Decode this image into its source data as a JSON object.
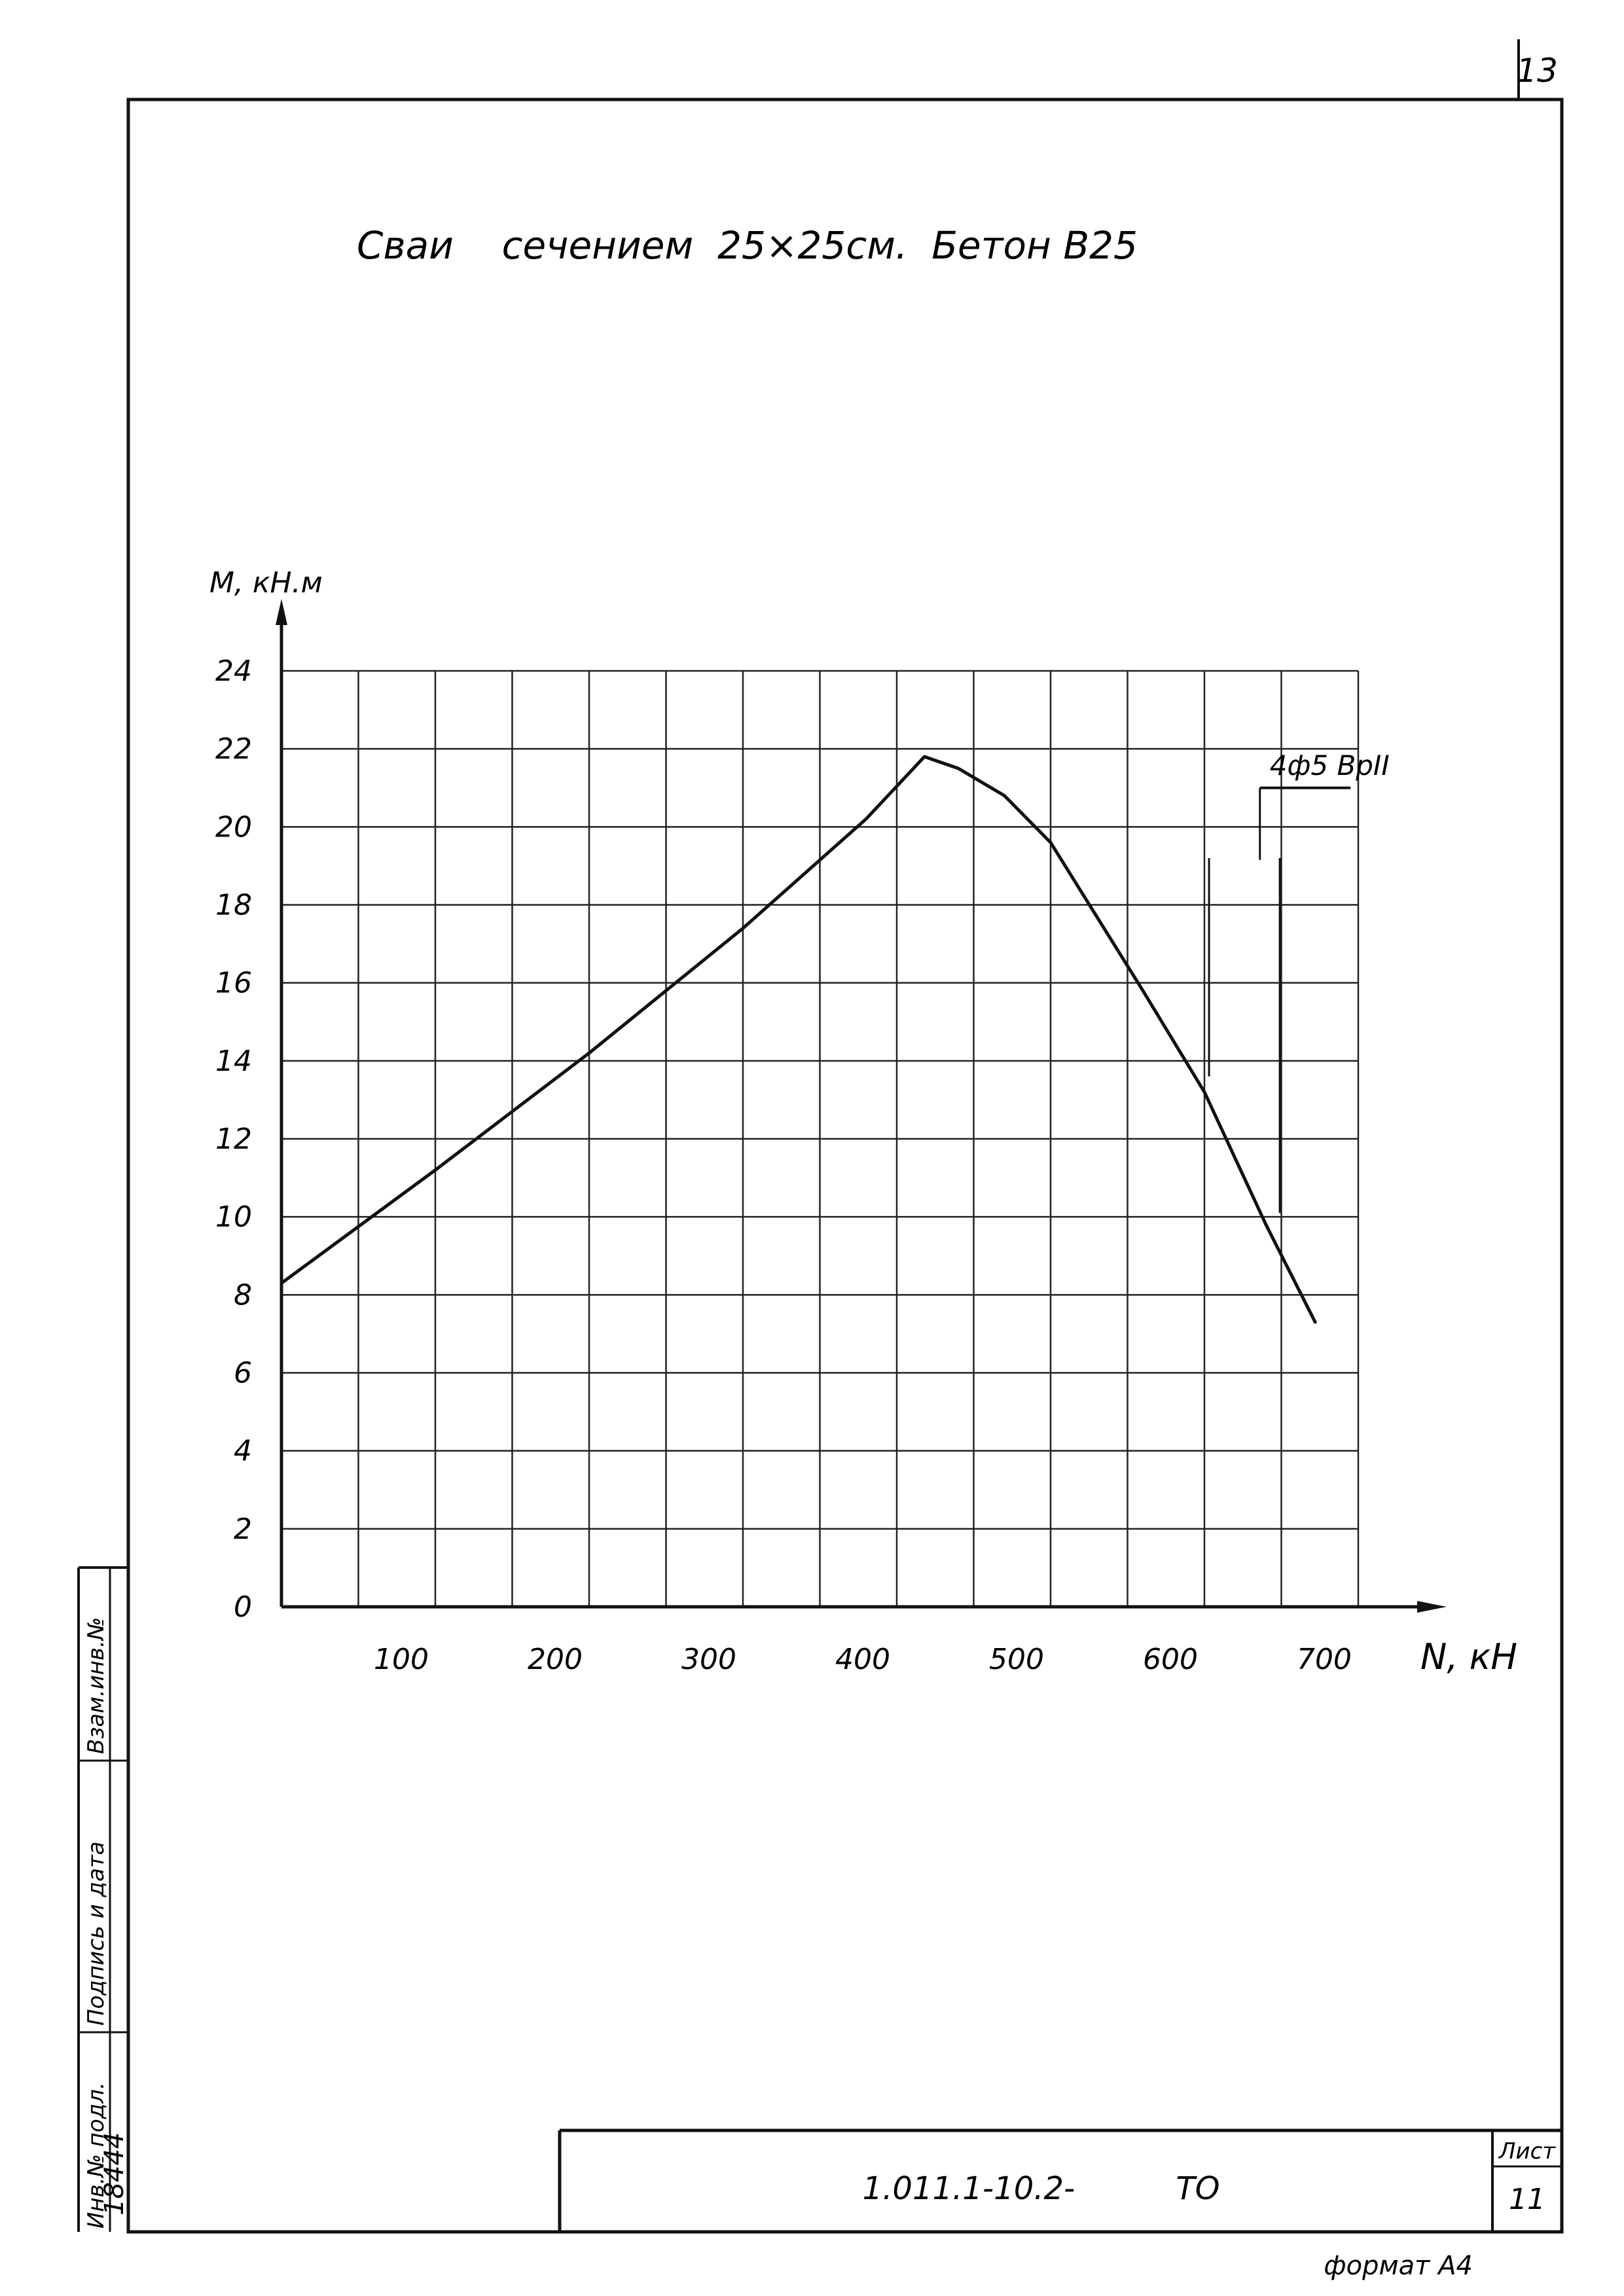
{
  "sheet": {
    "page_number": "13",
    "format_label": "формат А4"
  },
  "title_block": {
    "code": "1.011.1-10.2-",
    "doc_type": "ТО",
    "sheet_label": "Лист",
    "sheet_number": "11"
  },
  "side_stamp": {
    "inv_podl_label": "Инв.№ подл.",
    "inv_podl_value": "18444",
    "signature_date_label": "Подпись и дата",
    "vzam_inv_label": "Взам.инв.№"
  },
  "chart_data": {
    "type": "line",
    "title": "Сваи    сечением  25×25см.  Бетон В25",
    "xlabel": "N, кН",
    "ylabel": "М, кН.м",
    "xlim": [
      0,
      700
    ],
    "ylim": [
      0,
      24
    ],
    "x_ticks": [
      "100",
      "200",
      "300",
      "400",
      "500",
      "600",
      "700"
    ],
    "y_ticks": [
      "0",
      "2",
      "4",
      "6",
      "8",
      "10",
      "12",
      "14",
      "16",
      "18",
      "20",
      "22",
      "24"
    ],
    "grid": true,
    "annotation": "4ф5 ВрII",
    "series": [
      {
        "x": [
          0,
          100,
          200,
          300,
          380,
          418,
          440,
          470,
          500,
          530,
          560,
          600,
          640,
          672
        ],
        "y": [
          8.3,
          11.2,
          14.2,
          17.4,
          20.2,
          21.8,
          21.5,
          20.8,
          19.6,
          17.7,
          15.8,
          13.2,
          9.8,
          7.3
        ]
      }
    ]
  }
}
